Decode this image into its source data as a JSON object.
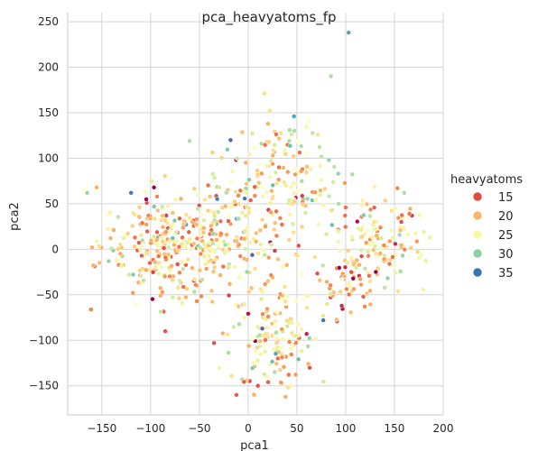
{
  "chart_data": {
    "type": "scatter",
    "title": "pca_heavyatoms_fp",
    "xlabel": "pca1",
    "ylabel": "pca2",
    "xlim": [
      -185,
      200
    ],
    "ylim": [
      -182,
      260
    ],
    "xticks": [
      -150,
      -100,
      -50,
      0,
      50,
      100,
      150,
      200
    ],
    "yticks": [
      -150,
      -100,
      -50,
      0,
      50,
      100,
      150,
      200,
      250
    ],
    "grid": true,
    "legend": {
      "title": "heavyatoms",
      "placement": "right",
      "entries": [
        {
          "label": "15",
          "color": "#e04a3a"
        },
        {
          "label": "20",
          "color": "#fbb66a"
        },
        {
          "label": "25",
          "color": "#f6f8a3"
        },
        {
          "label": "30",
          "color": "#8ed0a0"
        },
        {
          "label": "35",
          "color": "#3a74b6"
        }
      ]
    },
    "colormap_anchors": [
      {
        "v": 10,
        "color": "#9e0142"
      },
      {
        "v": 14,
        "color": "#d53e4f"
      },
      {
        "v": 17,
        "color": "#f46d43"
      },
      {
        "v": 20,
        "color": "#fdae61"
      },
      {
        "v": 23,
        "color": "#fee08b"
      },
      {
        "v": 25,
        "color": "#ffffbf"
      },
      {
        "v": 27,
        "color": "#e6f598"
      },
      {
        "v": 30,
        "color": "#abdda4"
      },
      {
        "v": 33,
        "color": "#66c2a5"
      },
      {
        "v": 35,
        "color": "#3288bd"
      },
      {
        "v": 38,
        "color": "#5e4fa2"
      }
    ],
    "clusters": [
      {
        "cx": -75,
        "cy": 5,
        "sx": 38,
        "sy": 28,
        "n": 330,
        "vmean": 22,
        "vsd": 4.5
      },
      {
        "cx": 25,
        "cy": -95,
        "sx": 22,
        "sy": 30,
        "n": 150,
        "vmean": 23,
        "vsd": 4.5
      },
      {
        "cx": 135,
        "cy": 10,
        "sx": 22,
        "sy": 25,
        "n": 120,
        "vmean": 22,
        "vsd": 4.5
      },
      {
        "cx": 100,
        "cy": -35,
        "sx": 15,
        "sy": 20,
        "n": 60,
        "vmean": 19,
        "vsd": 4
      },
      {
        "cx": 35,
        "cy": 75,
        "sx": 32,
        "sy": 35,
        "n": 150,
        "vmean": 24,
        "vsd": 4.5
      },
      {
        "cx": 10,
        "cy": 10,
        "sx": 40,
        "sy": 40,
        "n": 90,
        "vmean": 23,
        "vsd": 5
      }
    ],
    "points": [
      {
        "x": 103,
        "y": 238,
        "v": 34
      },
      {
        "x": -165,
        "y": 62,
        "v": 31
      },
      {
        "x": -168,
        "y": 65,
        "v": 25
      },
      {
        "x": -160,
        "y": 2,
        "v": 20
      },
      {
        "x": -120,
        "y": 62,
        "v": 36
      },
      {
        "x": -18,
        "y": 120,
        "v": 37
      },
      {
        "x": -60,
        "y": 119,
        "v": 30
      },
      {
        "x": 47,
        "y": 146,
        "v": 34
      },
      {
        "x": 85,
        "y": 190,
        "v": 30
      },
      {
        "x": 10,
        "y": -150,
        "v": 15
      },
      {
        "x": -12,
        "y": -160,
        "v": 16
      },
      {
        "x": 77,
        "y": -78,
        "v": 36
      },
      {
        "x": -35,
        "y": -103,
        "v": 15
      },
      {
        "x": -85,
        "y": -90,
        "v": 15
      },
      {
        "x": 160,
        "y": 62,
        "v": 30
      }
    ]
  }
}
